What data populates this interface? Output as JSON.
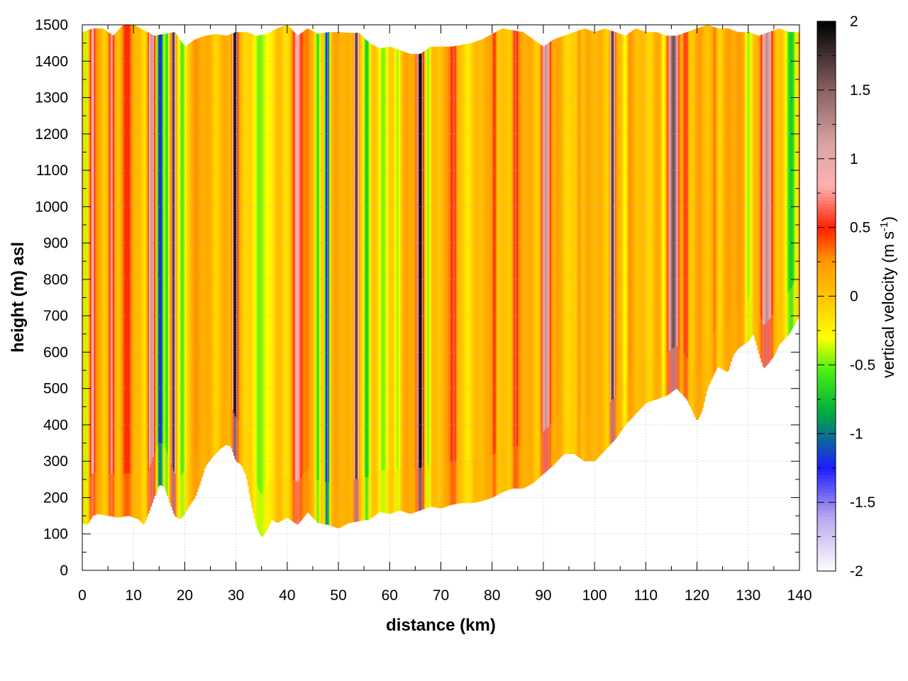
{
  "chart_data": {
    "type": "heatmap",
    "title": "",
    "xlabel": "distance (km)",
    "ylabel": "height (m) asl",
    "xlim": [
      0,
      140
    ],
    "ylim": [
      0,
      1500
    ],
    "x_ticks": [
      0,
      10,
      20,
      30,
      40,
      50,
      60,
      70,
      80,
      90,
      100,
      110,
      120,
      130,
      140
    ],
    "y_ticks": [
      0,
      100,
      200,
      300,
      400,
      500,
      600,
      700,
      800,
      900,
      1000,
      1100,
      1200,
      1300,
      1400,
      1500
    ],
    "grid": true,
    "colorbar": {
      "label_prefix": "vertical velocity (m s",
      "label_exp": "-1",
      "label_suffix": ")",
      "range": [
        -2,
        2
      ],
      "ticks": [
        -2,
        -1.5,
        -1,
        -0.5,
        0,
        0.5,
        1,
        1.5,
        2
      ],
      "tick_labels": [
        "-2",
        "-1.5",
        "-1",
        "-0.5",
        "0",
        "0.5",
        "1",
        "1.5",
        "2"
      ],
      "palette": [
        {
          "v": -2.0,
          "color": "#ffffff"
        },
        {
          "v": -1.6,
          "color": "#b8a4ee"
        },
        {
          "v": -1.25,
          "color": "#1c1cff"
        },
        {
          "v": -0.85,
          "color": "#00aa40"
        },
        {
          "v": -0.55,
          "color": "#44ee11"
        },
        {
          "v": -0.3,
          "color": "#ffff00"
        },
        {
          "v": 0.0,
          "color": "#ffc400"
        },
        {
          "v": 0.25,
          "color": "#ff9a00"
        },
        {
          "v": 0.5,
          "color": "#ff2000"
        },
        {
          "v": 0.8,
          "color": "#ffb0b0"
        },
        {
          "v": 1.1,
          "color": "#dca4a4"
        },
        {
          "v": 1.5,
          "color": "#8a6262"
        },
        {
          "v": 2.0,
          "color": "#000000"
        }
      ]
    },
    "terrain_profile": {
      "distance_km": [
        0,
        1,
        2,
        3,
        5,
        7,
        9,
        11,
        12,
        13,
        14,
        15,
        16,
        17,
        18,
        19,
        20,
        21,
        22,
        23,
        24,
        25,
        26,
        27,
        28,
        29,
        30,
        31,
        32,
        33,
        34,
        35,
        36,
        37,
        38,
        40,
        42,
        44,
        46,
        48,
        50,
        52,
        54,
        56,
        58,
        60,
        62,
        64,
        66,
        68,
        70,
        72,
        74,
        76,
        78,
        80,
        82,
        84,
        86,
        88,
        90,
        92,
        94,
        96,
        98,
        100,
        102,
        104,
        106,
        108,
        110,
        112,
        114,
        116,
        118,
        119,
        120,
        121,
        122,
        124,
        126,
        127,
        128,
        130,
        131,
        132,
        133,
        134,
        135,
        136,
        138,
        140
      ],
      "height_m": [
        130,
        125,
        150,
        155,
        150,
        145,
        150,
        140,
        125,
        160,
        200,
        235,
        230,
        190,
        150,
        140,
        155,
        180,
        200,
        240,
        285,
        305,
        320,
        335,
        345,
        340,
        300,
        290,
        260,
        180,
        120,
        90,
        110,
        140,
        130,
        145,
        125,
        160,
        130,
        125,
        115,
        130,
        135,
        140,
        160,
        155,
        165,
        155,
        165,
        175,
        170,
        180,
        185,
        185,
        190,
        200,
        215,
        225,
        225,
        240,
        265,
        290,
        320,
        320,
        300,
        300,
        330,
        360,
        400,
        430,
        460,
        470,
        480,
        500,
        470,
        440,
        410,
        440,
        500,
        560,
        545,
        590,
        610,
        630,
        650,
        600,
        555,
        570,
        590,
        620,
        650,
        700
      ]
    },
    "cloud_top": {
      "distance_km": [
        0,
        2,
        4,
        6,
        8,
        10,
        12,
        14,
        16,
        18,
        20,
        22,
        24,
        26,
        28,
        30,
        32,
        34,
        36,
        38,
        40,
        42,
        44,
        46,
        48,
        50,
        52,
        54,
        56,
        58,
        60,
        62,
        64,
        66,
        68,
        70,
        72,
        74,
        76,
        78,
        80,
        82,
        84,
        86,
        88,
        90,
        92,
        94,
        96,
        98,
        100,
        102,
        104,
        106,
        108,
        110,
        112,
        114,
        116,
        118,
        120,
        122,
        124,
        126,
        128,
        130,
        132,
        134,
        136,
        138,
        140
      ],
      "height_m": [
        1480,
        1490,
        1490,
        1470,
        1500,
        1500,
        1485,
        1470,
        1475,
        1480,
        1440,
        1460,
        1470,
        1475,
        1470,
        1480,
        1480,
        1470,
        1475,
        1490,
        1500,
        1470,
        1490,
        1475,
        1480,
        1480,
        1478,
        1478,
        1450,
        1435,
        1440,
        1430,
        1420,
        1420,
        1440,
        1440,
        1440,
        1445,
        1450,
        1460,
        1475,
        1490,
        1485,
        1480,
        1460,
        1440,
        1460,
        1470,
        1480,
        1490,
        1480,
        1490,
        1480,
        1470,
        1490,
        1480,
        1480,
        1470,
        1470,
        1480,
        1490,
        1500,
        1490,
        1490,
        1480,
        1480,
        1470,
        1480,
        1490,
        1480,
        1480
      ]
    },
    "updraft_downdraft_columns": [
      {
        "center_km": 0.7,
        "width_km": 1.0,
        "peak_w": -0.6
      },
      {
        "center_km": 2.0,
        "width_km": 1.0,
        "peak_w": 0.75
      },
      {
        "center_km": 5.7,
        "width_km": 1.3,
        "peak_w": 0.7
      },
      {
        "center_km": 9.0,
        "width_km": 2.2,
        "peak_w": 0.3
      },
      {
        "center_km": 13.5,
        "width_km": 1.6,
        "peak_w": 1.2
      },
      {
        "center_km": 15.2,
        "width_km": 1.5,
        "peak_w": -1.3
      },
      {
        "center_km": 16.5,
        "width_km": 1.0,
        "peak_w": -0.8
      },
      {
        "center_km": 17.8,
        "width_km": 1.0,
        "peak_w": 1.9
      },
      {
        "center_km": 19.5,
        "width_km": 1.5,
        "peak_w": -0.55
      },
      {
        "center_km": 29.8,
        "width_km": 1.0,
        "peak_w": 1.9
      },
      {
        "center_km": 35.5,
        "width_km": 4.0,
        "peak_w": -0.5
      },
      {
        "center_km": 42.0,
        "width_km": 2.0,
        "peak_w": 0.8
      },
      {
        "center_km": 46.0,
        "width_km": 1.2,
        "peak_w": -0.7
      },
      {
        "center_km": 47.8,
        "width_km": 1.0,
        "peak_w": -1.4
      },
      {
        "center_km": 53.5,
        "width_km": 1.0,
        "peak_w": 2.0
      },
      {
        "center_km": 55.5,
        "width_km": 1.3,
        "peak_w": -0.7
      },
      {
        "center_km": 58.5,
        "width_km": 2.8,
        "peak_w": -0.5
      },
      {
        "center_km": 61.5,
        "width_km": 1.2,
        "peak_w": -0.3
      },
      {
        "center_km": 66.0,
        "width_km": 1.2,
        "peak_w": 1.9
      },
      {
        "center_km": 67.5,
        "width_km": 1.2,
        "peak_w": -0.4
      },
      {
        "center_km": 72.5,
        "width_km": 1.4,
        "peak_w": 0.6
      },
      {
        "center_km": 80.5,
        "width_km": 1.2,
        "peak_w": 0.5
      },
      {
        "center_km": 84.5,
        "width_km": 1.0,
        "peak_w": 0.4
      },
      {
        "center_km": 90.5,
        "width_km": 2.0,
        "peak_w": 1.1
      },
      {
        "center_km": 97.0,
        "width_km": 1.0,
        "peak_w": 0.4
      },
      {
        "center_km": 103.5,
        "width_km": 1.0,
        "peak_w": 1.8
      },
      {
        "center_km": 106.0,
        "width_km": 1.2,
        "peak_w": -0.5
      },
      {
        "center_km": 113.5,
        "width_km": 1.0,
        "peak_w": -0.4
      },
      {
        "center_km": 115.5,
        "width_km": 2.4,
        "peak_w": 1.6
      },
      {
        "center_km": 117.8,
        "width_km": 1.2,
        "peak_w": 0.6
      },
      {
        "center_km": 123.5,
        "width_km": 1.0,
        "peak_w": 0.3
      },
      {
        "center_km": 130.0,
        "width_km": 1.5,
        "peak_w": -0.35
      },
      {
        "center_km": 133.5,
        "width_km": 2.5,
        "peak_w": 1.1
      },
      {
        "center_km": 138.5,
        "width_km": 2.5,
        "peak_w": -0.55
      }
    ]
  }
}
